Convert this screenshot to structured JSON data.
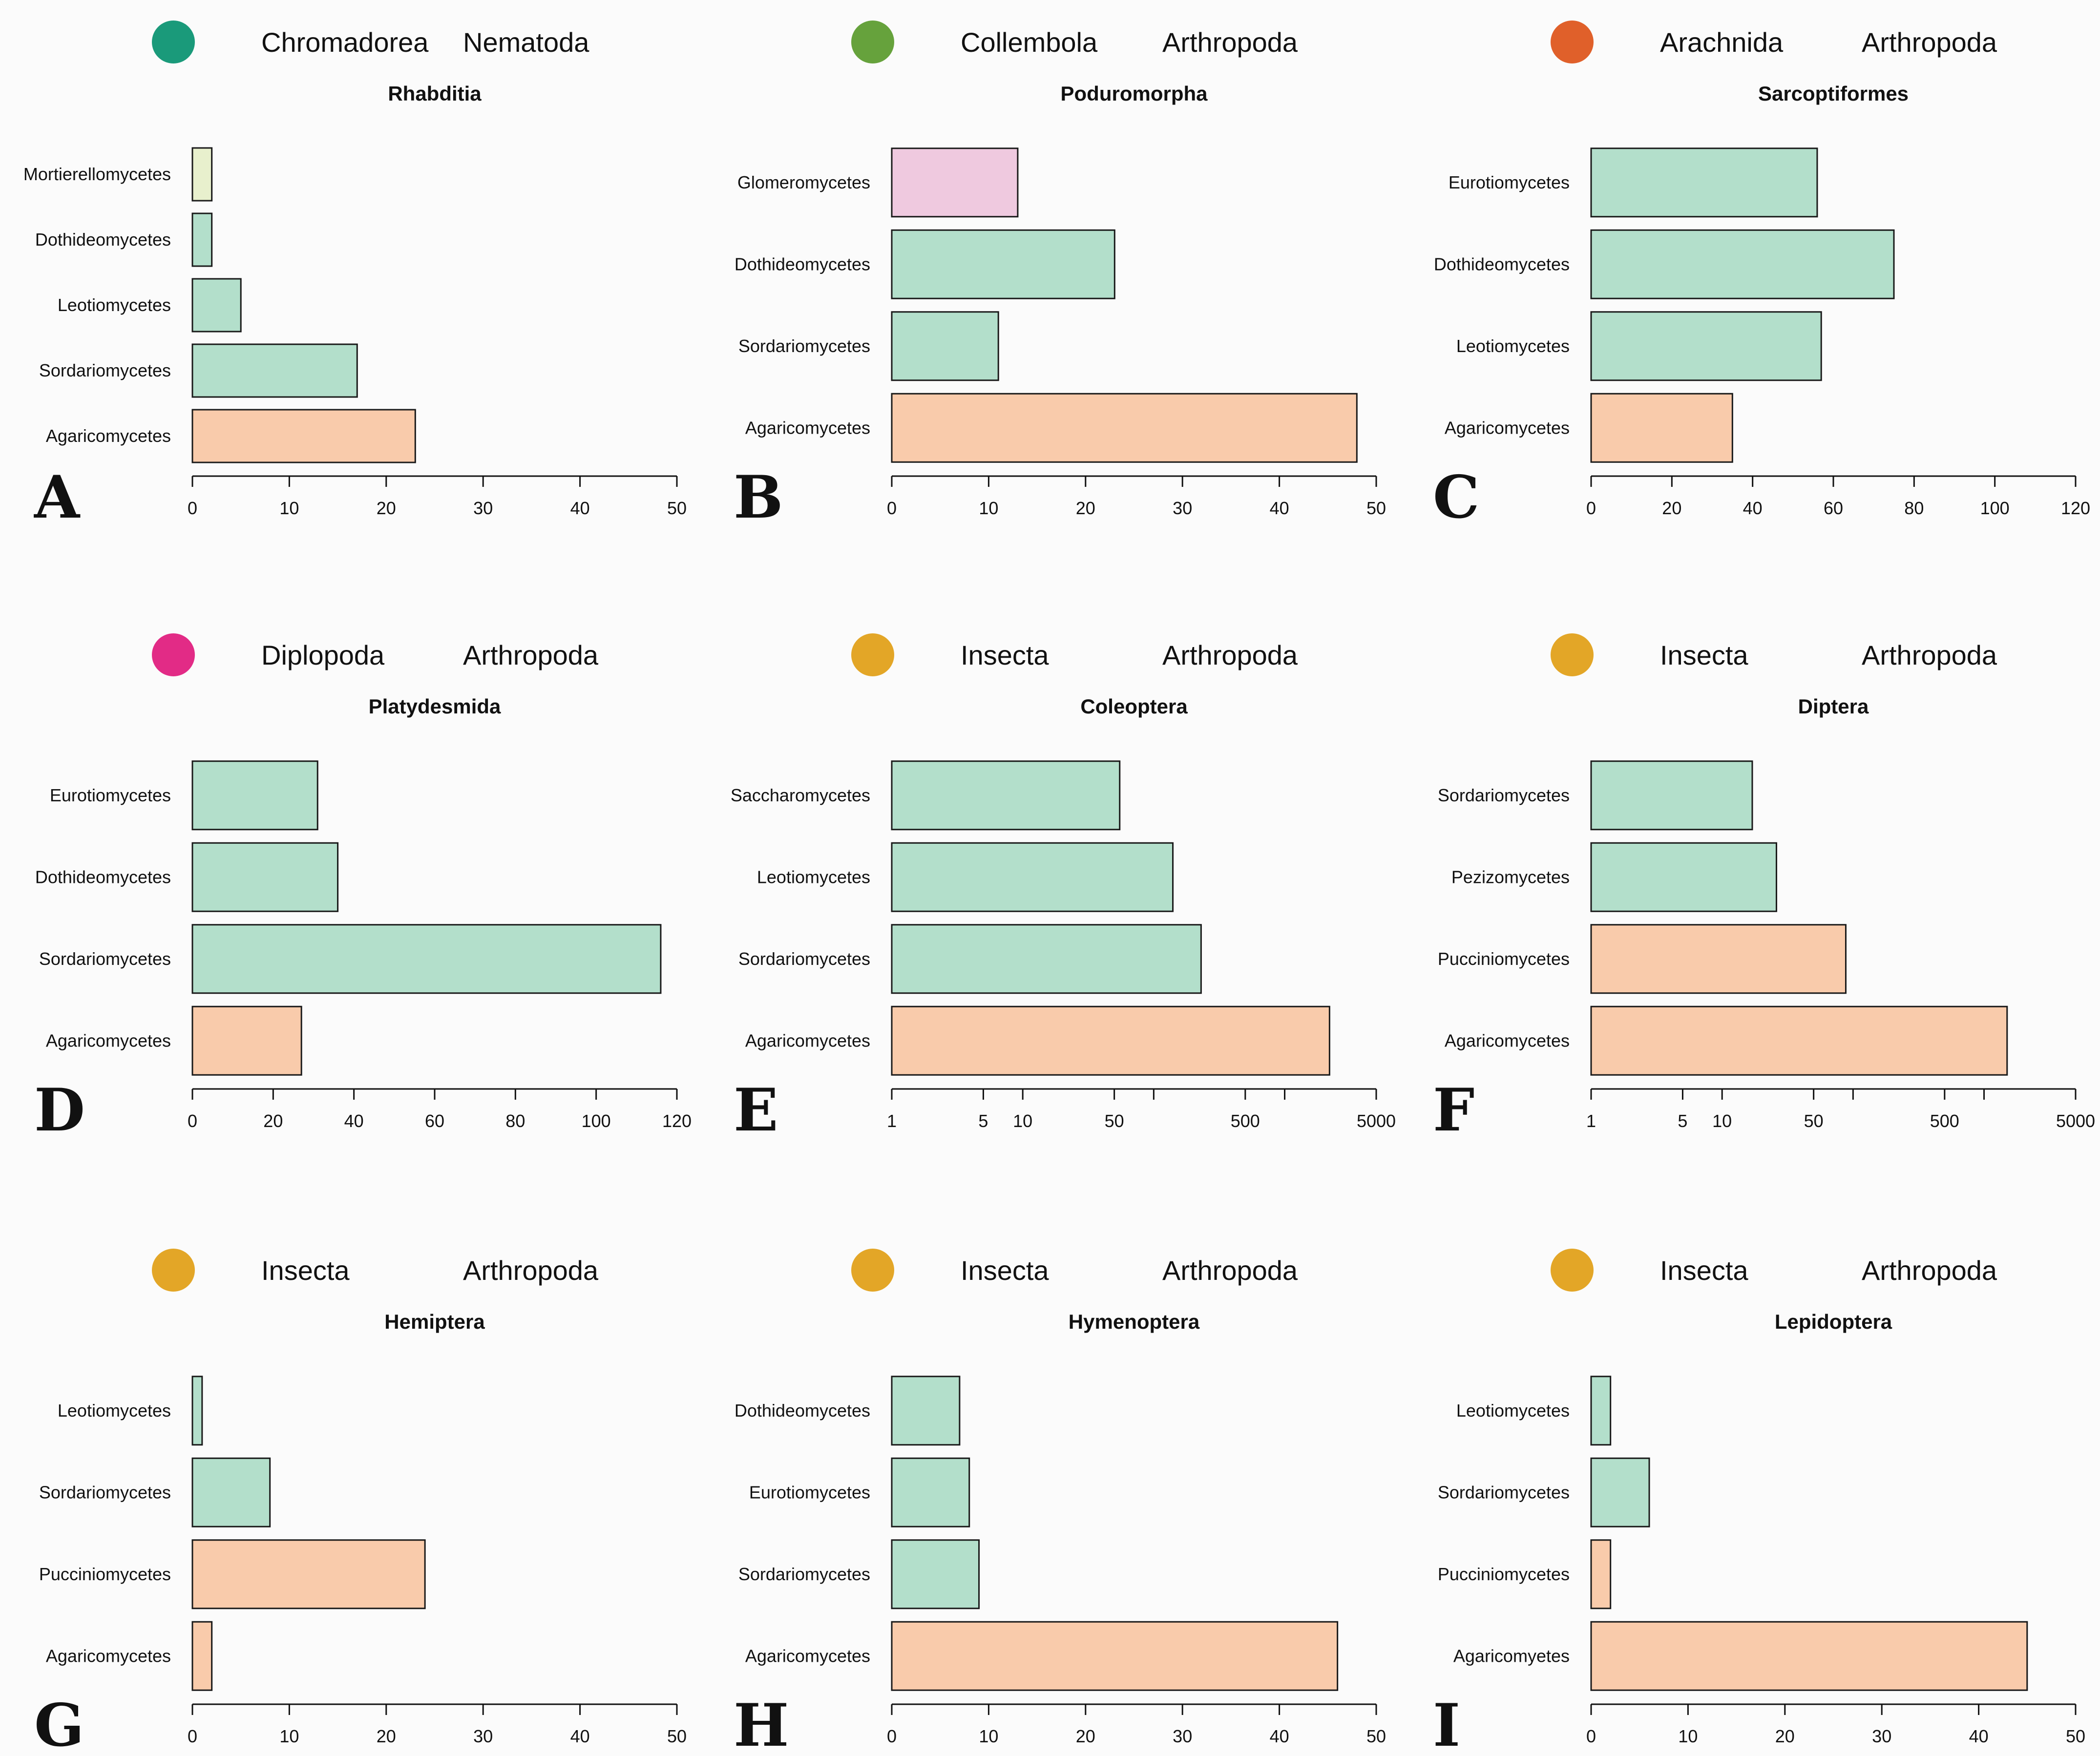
{
  "colors": {
    "ascomycota": "#b3dfcb",
    "basidiomycota": "#f9cbab",
    "mortierellomycota": "#e8f0cd",
    "glomeromycota": "#efc9df",
    "bar_outline": "#1a1a1a",
    "background": "#fbfbfb"
  },
  "chart_data": [
    {
      "type": "bar",
      "orientation": "horizontal",
      "panel": "A",
      "class": "Chromadorea",
      "phylum": "Nematoda",
      "title": "Rhabditia",
      "dot_color": "#1a9a7a",
      "categories": [
        "Mortierellomycetes",
        "Dothideomycetes",
        "Leotiomycetes",
        "Sordariomycetes",
        "Agaricomycetes"
      ],
      "values": [
        2,
        2,
        5,
        17,
        23
      ],
      "colors": [
        "mortierellomycota",
        "ascomycota",
        "ascomycota",
        "ascomycota",
        "basidiomycota"
      ],
      "scale": "linear",
      "xlim": [
        0,
        50
      ],
      "ticks": [
        0,
        10,
        20,
        30,
        40,
        50
      ],
      "tick_labels": [
        "0",
        "10",
        "20",
        "30",
        "40",
        "50"
      ]
    },
    {
      "type": "bar",
      "orientation": "horizontal",
      "panel": "B",
      "class": "Collembola",
      "phylum": "Arthropoda",
      "title": "Poduromorpha",
      "dot_color": "#66a23c",
      "categories": [
        "Glomeromycetes",
        "Dothideomycetes",
        "Sordariomycetes",
        "Agaricomycetes"
      ],
      "values": [
        13,
        23,
        11,
        48
      ],
      "colors": [
        "glomeromycota",
        "ascomycota",
        "ascomycota",
        "basidiomycota"
      ],
      "scale": "linear",
      "xlim": [
        0,
        50
      ],
      "ticks": [
        0,
        10,
        20,
        30,
        40,
        50
      ],
      "tick_labels": [
        "0",
        "10",
        "20",
        "30",
        "40",
        "50"
      ]
    },
    {
      "type": "bar",
      "orientation": "horizontal",
      "panel": "C",
      "class": "Arachnida",
      "phylum": "Arthropoda",
      "title": "Sarcoptiformes",
      "dot_color": "#e0602a",
      "categories": [
        "Eurotiomycetes",
        "Dothideomycetes",
        "Leotiomycetes",
        "Agaricomycetes"
      ],
      "values": [
        56,
        75,
        57,
        35
      ],
      "colors": [
        "ascomycota",
        "ascomycota",
        "ascomycota",
        "basidiomycota"
      ],
      "scale": "linear",
      "xlim": [
        0,
        120
      ],
      "ticks": [
        0,
        20,
        40,
        60,
        80,
        100,
        120
      ],
      "tick_labels": [
        "0",
        "20",
        "40",
        "60",
        "80",
        "100",
        "120"
      ]
    },
    {
      "type": "bar",
      "orientation": "horizontal",
      "panel": "D",
      "class": "Diplopoda",
      "phylum": "Arthropoda",
      "title": "Platydesmida",
      "dot_color": "#e22b86",
      "categories": [
        "Eurotiomycetes",
        "Dothideomycetes",
        "Sordariomycetes",
        "Agaricomycetes"
      ],
      "values": [
        31,
        36,
        116,
        27
      ],
      "colors": [
        "ascomycota",
        "ascomycota",
        "ascomycota",
        "basidiomycota"
      ],
      "scale": "linear",
      "xlim": [
        0,
        120
      ],
      "ticks": [
        0,
        20,
        40,
        60,
        80,
        100,
        120
      ],
      "tick_labels": [
        "0",
        "20",
        "40",
        "60",
        "80",
        "100",
        "120"
      ]
    },
    {
      "type": "bar",
      "orientation": "horizontal",
      "panel": "E",
      "class": "Insecta",
      "phylum": "Arthropoda",
      "title": "Coleoptera",
      "dot_color": "#e3a627",
      "categories": [
        "Saccharomycetes",
        "Leotiomycetes",
        "Sordariomycetes",
        "Agaricomycetes"
      ],
      "values": [
        55,
        140,
        230,
        2200
      ],
      "colors": [
        "ascomycota",
        "ascomycota",
        "ascomycota",
        "basidiomycota"
      ],
      "scale": "log",
      "xlim": [
        1,
        5000
      ],
      "ticks": [
        1,
        5,
        10,
        50,
        100,
        500,
        1000,
        5000
      ],
      "tick_labels": [
        "1",
        "5",
        "10",
        "50",
        "",
        "500",
        "",
        "5000"
      ]
    },
    {
      "type": "bar",
      "orientation": "horizontal",
      "panel": "F",
      "class": "Insecta",
      "phylum": "Arthropoda",
      "title": "Diptera",
      "dot_color": "#e3a627",
      "categories": [
        "Sordariomycetes",
        "Pezizomycetes",
        "Pucciniomycetes",
        "Agaricomycetes"
      ],
      "values": [
        17,
        26,
        88,
        1500
      ],
      "colors": [
        "ascomycota",
        "ascomycota",
        "basidiomycota",
        "basidiomycota"
      ],
      "scale": "log",
      "xlim": [
        1,
        5000
      ],
      "ticks": [
        1,
        5,
        10,
        50,
        100,
        500,
        1000,
        5000
      ],
      "tick_labels": [
        "1",
        "5",
        "10",
        "50",
        "",
        "500",
        "",
        "5000"
      ]
    },
    {
      "type": "bar",
      "orientation": "horizontal",
      "panel": "G",
      "class": "Insecta",
      "phylum": "Arthropoda",
      "title": "Hemiptera",
      "dot_color": "#e3a627",
      "categories": [
        "Leotiomycetes",
        "Sordariomycetes",
        "Pucciniomycetes",
        "Agaricomycetes"
      ],
      "values": [
        1,
        8,
        24,
        2
      ],
      "colors": [
        "ascomycota",
        "ascomycota",
        "basidiomycota",
        "basidiomycota"
      ],
      "scale": "linear",
      "xlim": [
        0,
        50
      ],
      "ticks": [
        0,
        10,
        20,
        30,
        40,
        50
      ],
      "tick_labels": [
        "0",
        "10",
        "20",
        "30",
        "40",
        "50"
      ]
    },
    {
      "type": "bar",
      "orientation": "horizontal",
      "panel": "H",
      "class": "Insecta",
      "phylum": "Arthropoda",
      "title": "Hymenoptera",
      "dot_color": "#e3a627",
      "categories": [
        "Dothideomycetes",
        "Eurotiomycetes",
        "Sordariomycetes",
        "Agaricomycetes"
      ],
      "values": [
        7,
        8,
        9,
        46
      ],
      "colors": [
        "ascomycota",
        "ascomycota",
        "ascomycota",
        "basidiomycota"
      ],
      "scale": "linear",
      "xlim": [
        0,
        50
      ],
      "ticks": [
        0,
        10,
        20,
        30,
        40,
        50
      ],
      "tick_labels": [
        "0",
        "10",
        "20",
        "30",
        "40",
        "50"
      ]
    },
    {
      "type": "bar",
      "orientation": "horizontal",
      "panel": "I",
      "class": "Insecta",
      "phylum": "Arthropoda",
      "title": "Lepidoptera",
      "dot_color": "#e3a627",
      "categories": [
        "Leotiomycetes",
        "Sordariomycetes",
        "Pucciniomycetes",
        "Agaricomyetes"
      ],
      "values": [
        2,
        6,
        2,
        45
      ],
      "colors": [
        "ascomycota",
        "ascomycota",
        "basidiomycota",
        "basidiomycota"
      ],
      "scale": "linear",
      "xlim": [
        0,
        50
      ],
      "ticks": [
        0,
        10,
        20,
        30,
        40,
        50
      ],
      "tick_labels": [
        "0",
        "10",
        "20",
        "30",
        "40",
        "50"
      ]
    }
  ]
}
